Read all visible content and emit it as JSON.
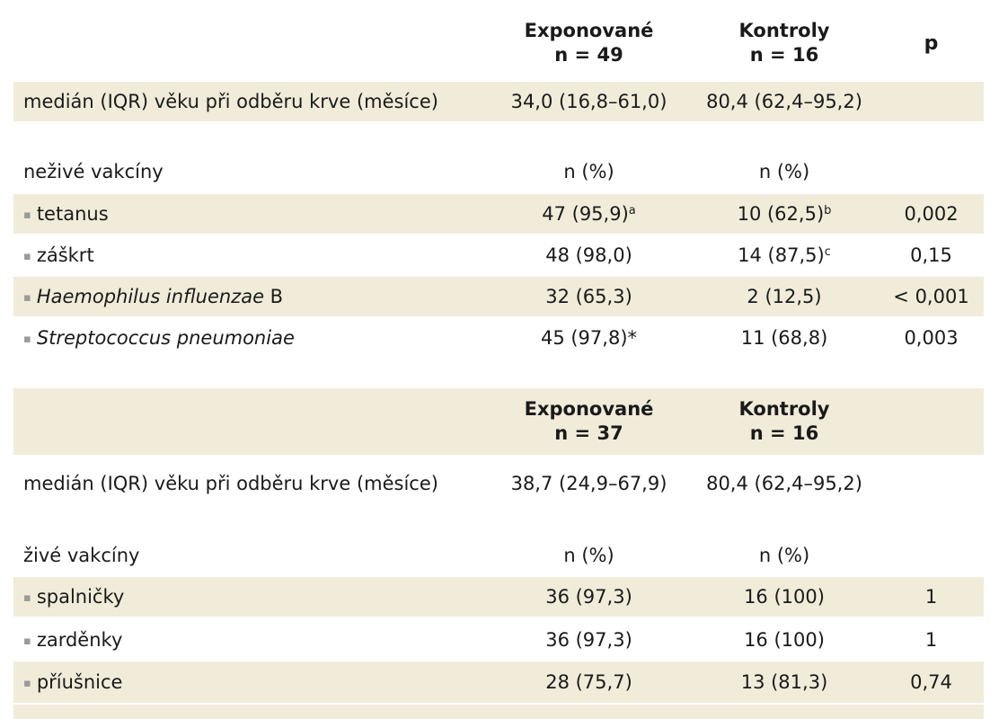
{
  "inactive": {
    "header": {
      "group1_name": "Exponované",
      "group1_n": "n = 49",
      "group2_name": "Kontroly",
      "group2_n": "n = 16",
      "p_label": "p"
    },
    "age_row": {
      "label": "medián (IQR) věku při odběru krve (měsíce)",
      "group1": "34,0 (16,8–61,0)",
      "group2": "80,4 (62,4–95,2)"
    },
    "section": {
      "label": "neživé vakcíny",
      "group1": "n (%)",
      "group2": "n (%)"
    },
    "rows": [
      {
        "label": "tetanus",
        "group1": "47 (95,9)",
        "group1_mark": "a",
        "group2": "10 (62,5)",
        "group2_mark": "b",
        "p": "0,002"
      },
      {
        "label": "záškrt",
        "group1": "48 (98,0)",
        "group1_mark": "",
        "group2": "14 (87,5)",
        "group2_mark": "c",
        "p": "0,15"
      },
      {
        "label_italic": "Haemophilus influenzae",
        "label_rest": " B",
        "group1": "32 (65,3)",
        "group2": "2 (12,5)",
        "p": "< 0,001"
      },
      {
        "label_italic": "Streptococcus pneumoniae",
        "label_rest": "",
        "group1": "45 (97,8)*",
        "group2": "11 (68,8)",
        "p": "0,003"
      }
    ]
  },
  "live": {
    "header": {
      "group1_name": "Exponované",
      "group1_n": "n = 37",
      "group2_name": "Kontroly",
      "group2_n": "n = 16"
    },
    "age_row": {
      "label": "medián (IQR) věku při odběru krve (měsíce)",
      "group1": "38,7 (24,9–67,9)",
      "group2": "80,4 (62,4–95,2)"
    },
    "section": {
      "label": "živé vakcíny",
      "group1": "n (%)",
      "group2": "n (%)"
    },
    "rows": [
      {
        "label": "spalničky",
        "group1": "36 (97,3)",
        "group2": "16 (100)",
        "p": "1"
      },
      {
        "label": "zarděnky",
        "group1": "36 (97,3)",
        "group2": "16 (100)",
        "p": "1"
      },
      {
        "label": "příušnice",
        "group1": "28 (75,7)",
        "group2": "13 (81,3)",
        "p": "0,74"
      }
    ]
  },
  "bullet_glyph": "▪",
  "colors": {
    "shade": "#f1ecda",
    "text": "#1a1a1a",
    "bullet": "#9a9a9a"
  }
}
